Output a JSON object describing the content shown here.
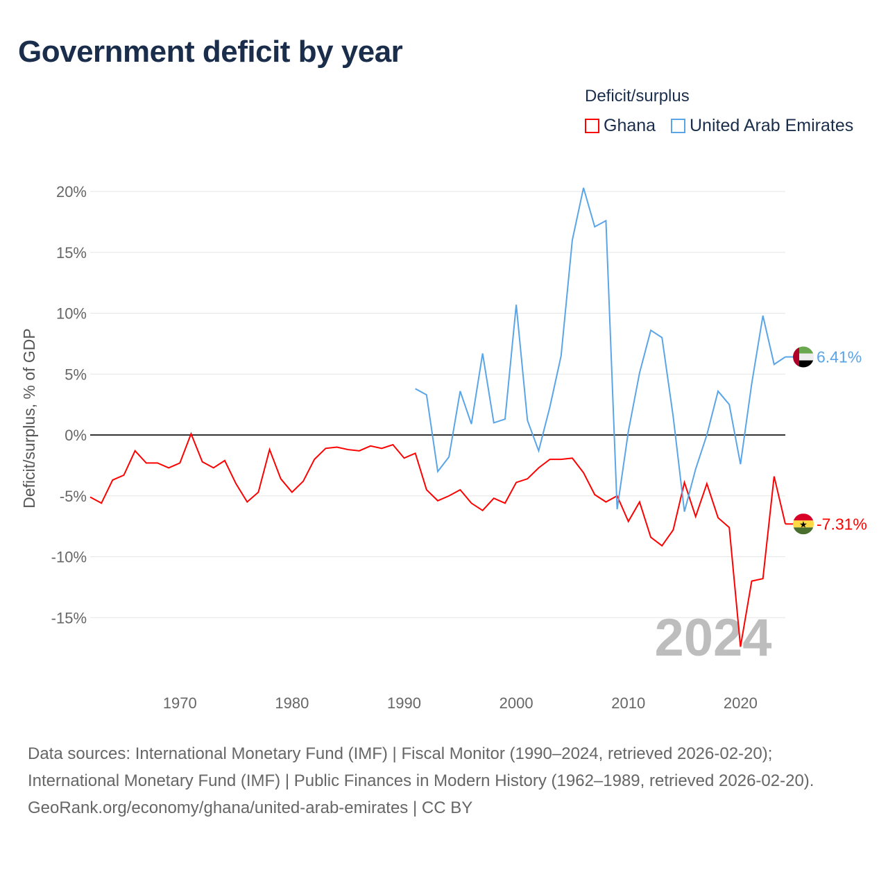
{
  "title": "Government deficit by year",
  "legend": {
    "title": "Deficit/surplus",
    "items": [
      {
        "name": "Ghana",
        "color": "#ff0000"
      },
      {
        "name": "United Arab Emirates",
        "color": "#5aa5e8"
      }
    ]
  },
  "source": {
    "line1": "Data sources: International Monetary Fund (IMF) | Fiscal Monitor (1990–2024, retrieved 2026-02-20); International Monetary Fund (IMF) | Public Finances in Modern History (1962–1989, retrieved 2026-02-20).",
    "line2": "GeoRank.org/economy/ghana/united-arab-emirates | CC BY"
  },
  "chart_data": {
    "type": "line",
    "title": "Government deficit by year",
    "ylabel": "Deficit/surplus, % of GDP",
    "xlabel": "",
    "year_watermark": "2024",
    "ylim": [
      -20,
      20
    ],
    "xlim": [
      1962,
      2024
    ],
    "yticks": [
      20,
      15,
      10,
      5,
      0,
      -5,
      -10,
      -15
    ],
    "ytick_labels": [
      "20%",
      "15%",
      "10%",
      "5%",
      "0%",
      "-5%",
      "-10%",
      "-15%"
    ],
    "xticks": [
      1970,
      1980,
      1990,
      2000,
      2010,
      2020
    ],
    "xtick_labels": [
      "1970",
      "1980",
      "1990",
      "2000",
      "2010",
      "2020"
    ],
    "series": [
      {
        "name": "Ghana",
        "color": "#ff0000",
        "end_label": "-7.31%",
        "start_year": 1962,
        "values": [
          -5.1,
          -5.6,
          -3.7,
          -3.3,
          -1.3,
          -2.3,
          -2.3,
          -2.7,
          -2.3,
          0.1,
          -2.2,
          -2.7,
          -2.1,
          -4.0,
          -5.5,
          -4.7,
          -1.2,
          -3.6,
          -4.7,
          -3.8,
          -2.0,
          -1.1,
          -1.0,
          -1.2,
          -1.3,
          -0.9,
          -1.1,
          -0.8,
          -1.9,
          -1.5,
          -4.5,
          -5.4,
          -5.0,
          -4.5,
          -5.6,
          -6.2,
          -5.2,
          -5.6,
          -3.9,
          -3.6,
          -2.7,
          -2.0,
          -2.0,
          -1.9,
          -3.1,
          -4.9,
          -5.5,
          -5.0,
          -7.1,
          -5.5,
          -8.4,
          -9.1,
          -7.8,
          -3.9,
          -6.7,
          -4.0,
          -6.8,
          -7.6,
          -17.4,
          -12.0,
          -11.8,
          -3.4,
          -7.31
        ]
      },
      {
        "name": "United Arab Emirates",
        "color": "#5aa5e8",
        "end_label": "6.41%",
        "start_year": 1991,
        "values": [
          3.8,
          3.3,
          -3.0,
          -1.8,
          3.6,
          0.9,
          6.7,
          1.0,
          1.3,
          10.7,
          1.2,
          -1.3,
          2.3,
          6.5,
          16.0,
          20.3,
          17.1,
          17.6,
          -6.1,
          0.3,
          5.1,
          8.6,
          8.0,
          1.5,
          -6.3,
          -2.8,
          0.0,
          3.6,
          2.5,
          -2.4,
          4.2,
          9.8,
          5.8,
          6.41
        ]
      }
    ]
  }
}
